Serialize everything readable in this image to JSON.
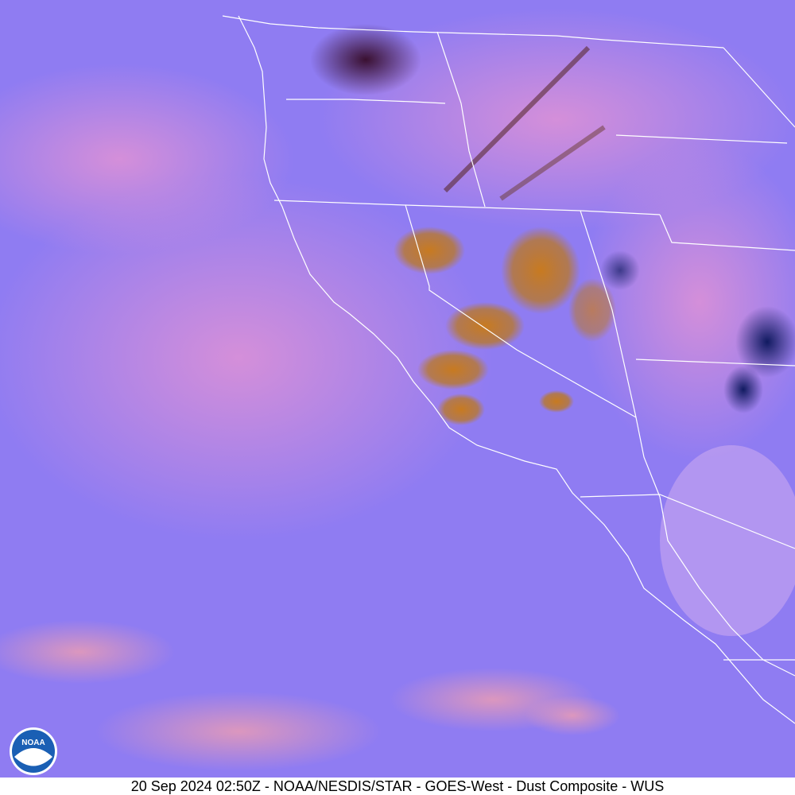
{
  "image": {
    "caption": "20 Sep 2024 02:50Z - NOAA/NESDIS/STAR - GOES-West - Dust Composite - WUS",
    "logo": "NOAA"
  }
}
